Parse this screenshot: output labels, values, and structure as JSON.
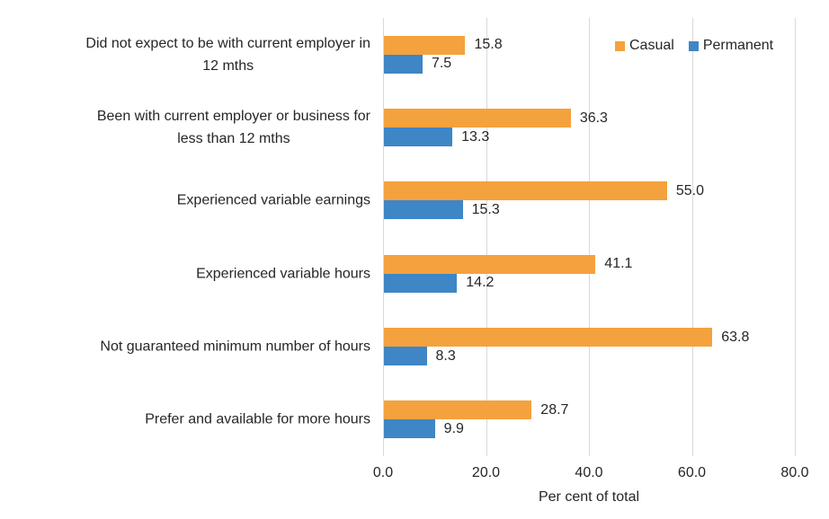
{
  "chart_data": {
    "type": "bar",
    "orientation": "horizontal",
    "title": "",
    "categories": [
      "Did not expect to be with current employer in\n12 mths",
      "Been with current employer or business for\nless than 12 mths",
      "Experienced variable earnings",
      "Experienced variable hours",
      "Not guaranteed minimum number of hours",
      "Prefer and available for more hours"
    ],
    "series": [
      {
        "name": "Casual",
        "color": "#F4A23D",
        "values": [
          15.8,
          36.3,
          55.0,
          41.1,
          63.8,
          28.7
        ]
      },
      {
        "name": "Permanent",
        "color": "#3E86C6",
        "values": [
          7.5,
          13.3,
          15.3,
          14.2,
          8.3,
          9.9
        ]
      }
    ],
    "xlabel": "Per cent of total",
    "xlim": [
      0,
      80
    ],
    "xticks": [
      0,
      20,
      40,
      60,
      80
    ],
    "xtick_labels": [
      "0.0",
      "20.0",
      "40.0",
      "60.0",
      "80.0"
    ],
    "value_labels": true,
    "value_label_format": "one_decimal",
    "grid": "vertical",
    "gridline_color": "#d9d9d9",
    "text_color": "#262626",
    "legend_position": "top-right"
  }
}
